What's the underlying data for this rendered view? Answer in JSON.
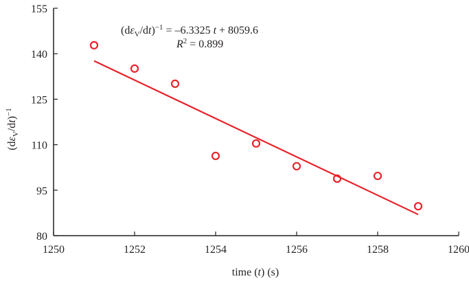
{
  "chart_data": {
    "type": "scatter",
    "title": "",
    "xlabel": "time (t) (s)",
    "ylabel": "(dεV/dt)^-1",
    "xlim": [
      1250,
      1260
    ],
    "ylim": [
      80,
      155
    ],
    "x_ticks": [
      1250,
      1252,
      1254,
      1256,
      1258,
      1260
    ],
    "y_ticks": [
      80,
      95,
      110,
      125,
      140,
      155
    ],
    "grid": false,
    "legend": null,
    "series": [
      {
        "name": "data",
        "marker": "open-circle",
        "color": "#e8212a",
        "x": [
          1251,
          1252,
          1253,
          1254,
          1255,
          1256,
          1257,
          1258,
          1259
        ],
        "y": [
          142.8,
          135.1,
          130.1,
          106.3,
          110.4,
          102.9,
          98.8,
          99.7,
          89.7
        ]
      }
    ],
    "trendline": {
      "type": "linear",
      "slope": -6.3325,
      "intercept": 8059.6,
      "r_squared": 0.899,
      "x_range": [
        1251,
        1259
      ],
      "color": "#e8212a"
    },
    "annotations": [
      "(dεV/dt)^-1 = –6.3325 t + 8059.6",
      "R^2 = 0.899"
    ]
  },
  "labels": {
    "x_axis": "time (t) (s)",
    "eq_prefix": "(d",
    "eq_eps": "ε",
    "eq_sub": "V",
    "eq_mid": "/d",
    "eq_t": "t",
    "eq_close": ")",
    "eq_sup": "−1",
    "eq_rhs": " = –6.3325 ",
    "eq_rhs_t": "t",
    "eq_rhs_end": " + 8059.6",
    "r2_R": "R",
    "r2_sup": "2",
    "r2_val": " = 0.899"
  }
}
